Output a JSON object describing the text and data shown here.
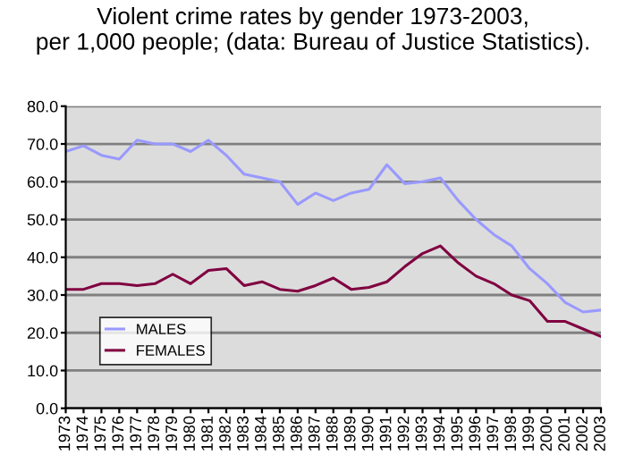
{
  "chart_data": {
    "type": "line",
    "title": "Violent crime rates by gender 1973-2003,\nper 1,000 people; (data: Bureau of Justice Statistics).",
    "categories": [
      "1973",
      "1974",
      "1975",
      "1976",
      "1977",
      "1978",
      "1979",
      "1980",
      "1981",
      "1982",
      "1983",
      "1984",
      "1985",
      "1986",
      "1987",
      "1988",
      "1989",
      "1990",
      "1991",
      "1992",
      "1993",
      "1994",
      "1995",
      "1996",
      "1997",
      "1998",
      "1999",
      "2000",
      "2001",
      "2002",
      "2003"
    ],
    "series": [
      {
        "name": "MALES",
        "color": "#9999ff",
        "values": [
          68,
          69.5,
          67,
          66,
          71,
          70,
          70,
          68,
          71,
          67,
          62,
          61,
          60,
          54,
          57,
          55,
          57,
          58,
          64.5,
          59.5,
          60,
          61,
          55,
          50,
          46,
          43,
          37,
          33,
          28,
          25.5,
          26
        ]
      },
      {
        "name": "FEMALES",
        "color": "#800040",
        "values": [
          31.5,
          31.5,
          33,
          33,
          32.5,
          33,
          35.5,
          33,
          36.5,
          37,
          32.5,
          33.5,
          31.5,
          31,
          32.5,
          34.5,
          31.5,
          32,
          33.5,
          37.5,
          41,
          43,
          38.5,
          35,
          33,
          30,
          28.5,
          23,
          23,
          21,
          19
        ]
      }
    ],
    "ylim": [
      0,
      80
    ],
    "yticks": [
      {
        "value": 0,
        "label": "0.0"
      },
      {
        "value": 10,
        "label": "10.0"
      },
      {
        "value": 20,
        "label": "20.0"
      },
      {
        "value": 30,
        "label": "30.0"
      },
      {
        "value": 40,
        "label": "40.0"
      },
      {
        "value": 50,
        "label": "50.0"
      },
      {
        "value": 60,
        "label": "60.0"
      },
      {
        "value": 70,
        "label": "70.0"
      },
      {
        "value": 80,
        "label": "80.0"
      }
    ],
    "grid": "y",
    "legend": "bottom left",
    "marker": "none",
    "line_style": "solid"
  }
}
